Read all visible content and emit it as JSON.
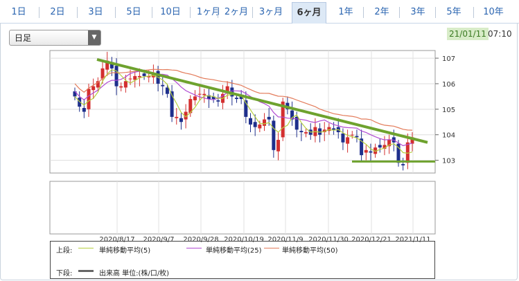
{
  "tabs": [
    "1日",
    "2日",
    "3日",
    "5日",
    "10日",
    "1ヶ月",
    "2ヶ月",
    "3ヶ月",
    "6ヶ月",
    "1年",
    "2年",
    "3年",
    "5年",
    "10年"
  ],
  "active_tab": 8,
  "period_select": {
    "value": "日足"
  },
  "timestamp": {
    "date": "21/01/11",
    "time": "07:10"
  },
  "legend": {
    "upper_label": "上段:",
    "lower_label": "下段:",
    "ma5": "単純移動平均(5)",
    "ma25": "単純移動平均(25)",
    "ma50": "単純移動平均(50)",
    "volume": "出来高 単位:(株/口/枚)"
  },
  "colors": {
    "ma5": "#b6cf3e",
    "ma25": "#b04ad2",
    "ma50": "#e37b5a",
    "up": "#d32f2f",
    "down": "#1e2f8c",
    "trendline": "#6ea22e",
    "volume": "#666666"
  },
  "chart_data": {
    "type": "candlestick",
    "y_ticks": [
      "107",
      "106",
      "105",
      "104",
      "103"
    ],
    "ylim": [
      102.5,
      107.3
    ],
    "x_ticks": [
      "2020/8/17",
      "2020/9/7",
      "2020/9/28",
      "2020/10/19",
      "2020/11/9",
      "2020/11/30",
      "2020/12/21",
      "2021/1/11"
    ],
    "grid": true,
    "series_closes_approx": [
      105.5,
      105.1,
      104.9,
      105.8,
      105.9,
      106.1,
      106.6,
      106.9,
      106.6,
      105.9,
      105.9,
      106.1,
      106.2,
      106.3,
      106.3,
      106.3,
      106.3,
      106.4,
      106.0,
      105.9,
      105.6,
      104.7,
      104.7,
      104.5,
      104.9,
      105.4,
      105.5,
      105.6,
      105.6,
      105.4,
      105.4,
      105.3,
      105.6,
      105.9,
      105.5,
      105.4,
      105.4,
      104.7,
      104.4,
      104.3,
      104.4,
      104.6,
      104.6,
      103.4,
      103.8,
      105.3,
      105.0,
      104.6,
      104.2,
      104.1,
      104.1,
      104.0,
      104.3,
      104.0,
      104.2,
      104.3,
      104.2,
      104.1,
      103.7,
      103.9,
      104.0,
      103.9,
      103.2,
      103.4,
      103.3,
      103.5,
      103.5,
      103.6,
      103.8,
      103.7,
      102.9,
      102.8,
      103.7,
      103.9
    ],
    "annotations": {
      "descending_trendline": [
        [
          106.95,
          "2020/8/17"
        ],
        [
          103.7,
          "2021/1/11"
        ]
      ],
      "support_line": 102.95
    }
  }
}
